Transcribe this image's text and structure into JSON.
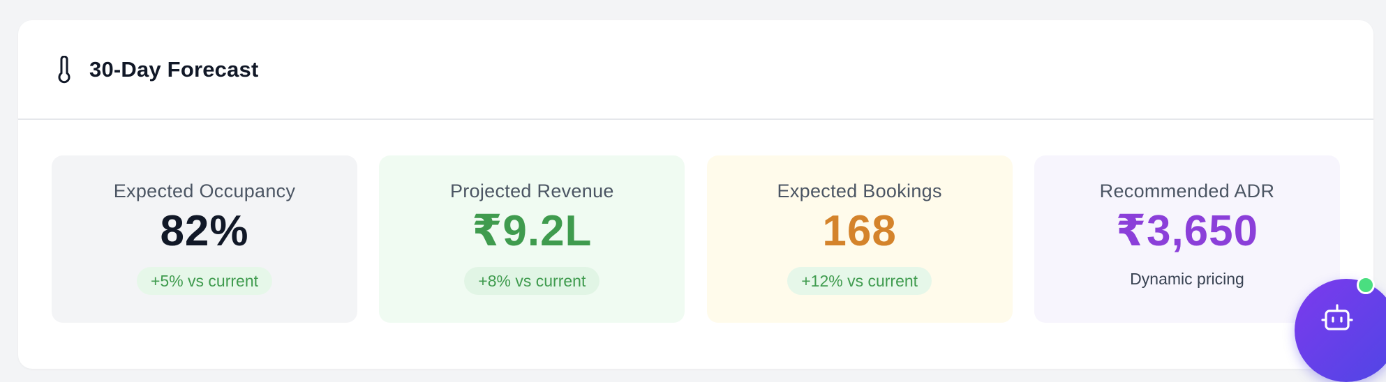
{
  "forecast": {
    "title": "30-Day Forecast",
    "title_icon": "thermometer-icon",
    "metrics": [
      {
        "label": "Expected Occupancy",
        "value": "82%",
        "badge": "+5% vs current",
        "value_color": "#111827",
        "background": "#f3f4f6"
      },
      {
        "label": "Projected Revenue",
        "value": "₹9.2L",
        "badge": "+8% vs current",
        "value_color": "#3f9b4e",
        "background": "#f0fbf2"
      },
      {
        "label": "Expected Bookings",
        "value": "168",
        "badge": "+12% vs current",
        "value_color": "#d4832b",
        "background": "#fffbeb"
      },
      {
        "label": "Recommended ADR",
        "value": "₹3,650",
        "note": "Dynamic pricing",
        "value_color": "#8b3fd9",
        "background": "#f7f5fd"
      }
    ],
    "badge_colors": {
      "text": "#3f9b4e",
      "background": "#e6f7e9"
    }
  },
  "assistant": {
    "icon": "bot-icon",
    "status_color": "#4ade80",
    "accent": "#6d3ff0"
  }
}
